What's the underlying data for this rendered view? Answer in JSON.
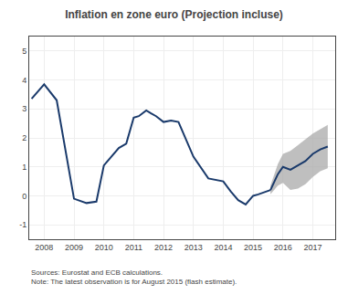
{
  "chart_data": {
    "type": "line",
    "title": "Inflation en zone euro (Projection incluse)",
    "annotations": [
      "Sources: Eurostat and ECB calculations.",
      "Note: The latest observation is for August 2015 (flash estimate)."
    ],
    "xlim": [
      2007.5,
      2017.75
    ],
    "xticks": [
      2008,
      2009,
      2010,
      2011,
      2012,
      2013,
      2014,
      2015,
      2016,
      2017
    ],
    "ylim": [
      -1.5,
      5.5
    ],
    "yticks": [
      -1,
      0,
      1,
      2,
      3,
      4,
      5
    ],
    "grid": true,
    "band": {
      "color": "#aaaaaa",
      "x": [
        2015.58,
        2015.83,
        2016.0,
        2016.25,
        2016.5,
        2016.75,
        2017.0,
        2017.25,
        2017.5
      ],
      "upper": [
        0.35,
        1.1,
        1.45,
        1.55,
        1.75,
        1.95,
        2.15,
        2.3,
        2.45
      ],
      "lower": [
        0.05,
        0.35,
        0.45,
        0.2,
        0.25,
        0.4,
        0.65,
        0.85,
        0.95
      ]
    },
    "series": [
      {
        "color": "#1a3a6b",
        "x": [
          2007.58,
          2008.0,
          2008.42,
          2009.0,
          2009.42,
          2009.75,
          2010.0,
          2010.5,
          2010.75,
          2011.0,
          2011.17,
          2011.42,
          2011.58,
          2011.75,
          2012.0,
          2012.25,
          2012.5,
          2013.0,
          2013.5,
          2014.0,
          2014.25,
          2014.5,
          2014.75,
          2015.0,
          2015.17,
          2015.42,
          2015.58
        ],
        "values": [
          3.35,
          3.85,
          3.3,
          -0.1,
          -0.25,
          -0.2,
          1.05,
          1.65,
          1.8,
          2.7,
          2.75,
          2.95,
          2.85,
          2.75,
          2.55,
          2.6,
          2.55,
          1.35,
          0.6,
          0.5,
          0.15,
          -0.15,
          -0.3,
          0.0,
          0.05,
          0.15,
          0.2
        ]
      },
      {
        "color": "#1a3a6b",
        "x": [
          2015.58,
          2015.83,
          2016.0,
          2016.25,
          2016.5,
          2016.75,
          2017.0,
          2017.25,
          2017.5
        ],
        "values": [
          0.2,
          0.75,
          1.0,
          0.9,
          1.05,
          1.2,
          1.45,
          1.6,
          1.7
        ]
      }
    ]
  }
}
